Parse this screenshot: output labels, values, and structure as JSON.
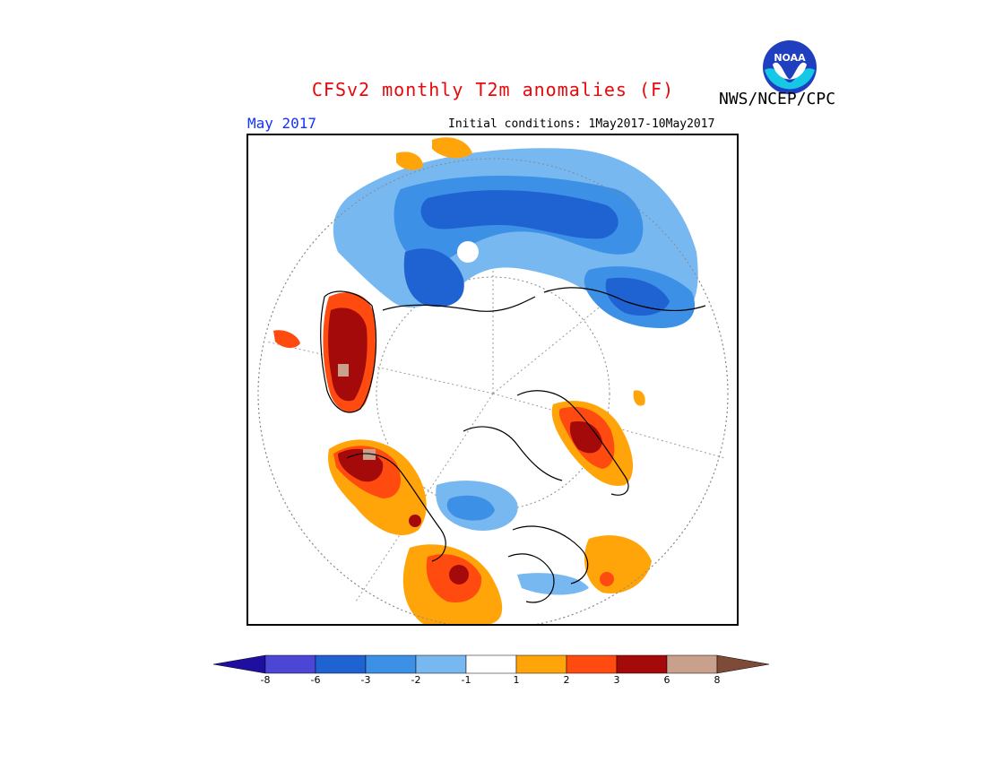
{
  "header": {
    "title": "CFSv2 monthly T2m anomalies (F)",
    "credit": "NWS/NCEP/CPC",
    "logo_text": "NOAA",
    "month": "May 2017",
    "initial_conditions": "Initial conditions: 1May2017-10May2017"
  },
  "map": {
    "projection": "north polar stereographic",
    "variable": "T2m anomaly",
    "units": "F"
  },
  "legend": {
    "ticks": [
      "-8",
      "-6",
      "-3",
      "-2",
      "-1",
      "1",
      "2",
      "3",
      "6",
      "8"
    ],
    "bins": [
      {
        "range": "< -8",
        "color": "#1e0fa0"
      },
      {
        "range": "-8 to -6",
        "color": "#4b46d6"
      },
      {
        "range": "-6 to -3",
        "color": "#1f63d2"
      },
      {
        "range": "-3 to -2",
        "color": "#3c90e6"
      },
      {
        "range": "-2 to -1",
        "color": "#78b8f0"
      },
      {
        "range": "-1 to 1",
        "color": "#ffffff"
      },
      {
        "range": "1 to 2",
        "color": "#ffa50a"
      },
      {
        "range": "2 to 3",
        "color": "#ff4b0f"
      },
      {
        "range": "3 to 6",
        "color": "#a50a0a"
      },
      {
        "range": "6 to 8",
        "color": "#c8a08c"
      },
      {
        "range": "> 8",
        "color": "#7d4b37"
      }
    ]
  }
}
